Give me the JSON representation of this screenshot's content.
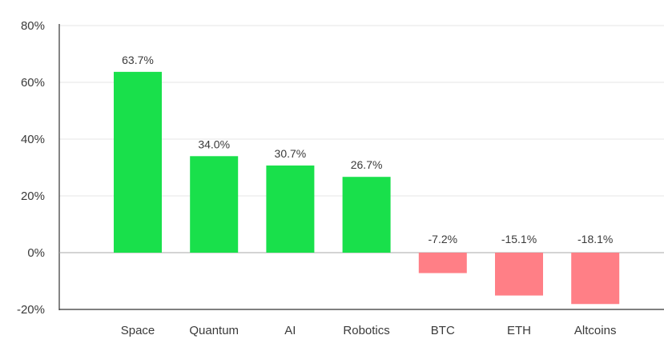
{
  "chart_data": {
    "type": "bar",
    "title": "",
    "xlabel": "",
    "ylabel": "",
    "categories": [
      "Space",
      "Quantum",
      "AI",
      "Robotics",
      "BTC",
      "ETH",
      "Altcoins"
    ],
    "values": [
      63.7,
      34.0,
      30.7,
      26.7,
      -7.2,
      -15.1,
      -18.1
    ],
    "data_labels": [
      "63.7%",
      "34.0%",
      "30.7%",
      "26.7%",
      "-7.2%",
      "-15.1%",
      "-18.1%"
    ],
    "ylim": [
      -20,
      80
    ],
    "yticks": [
      -20,
      0,
      20,
      40,
      60,
      80
    ],
    "ytick_labels": [
      "-20%",
      "0%",
      "20%",
      "40%",
      "60%",
      "80%"
    ],
    "grid": true,
    "colors": {
      "positive": "#19e04b",
      "negative": "#ff7f86",
      "grid": "#e6e6e6",
      "axis": "#333333",
      "text": "#3a3a3a"
    }
  }
}
